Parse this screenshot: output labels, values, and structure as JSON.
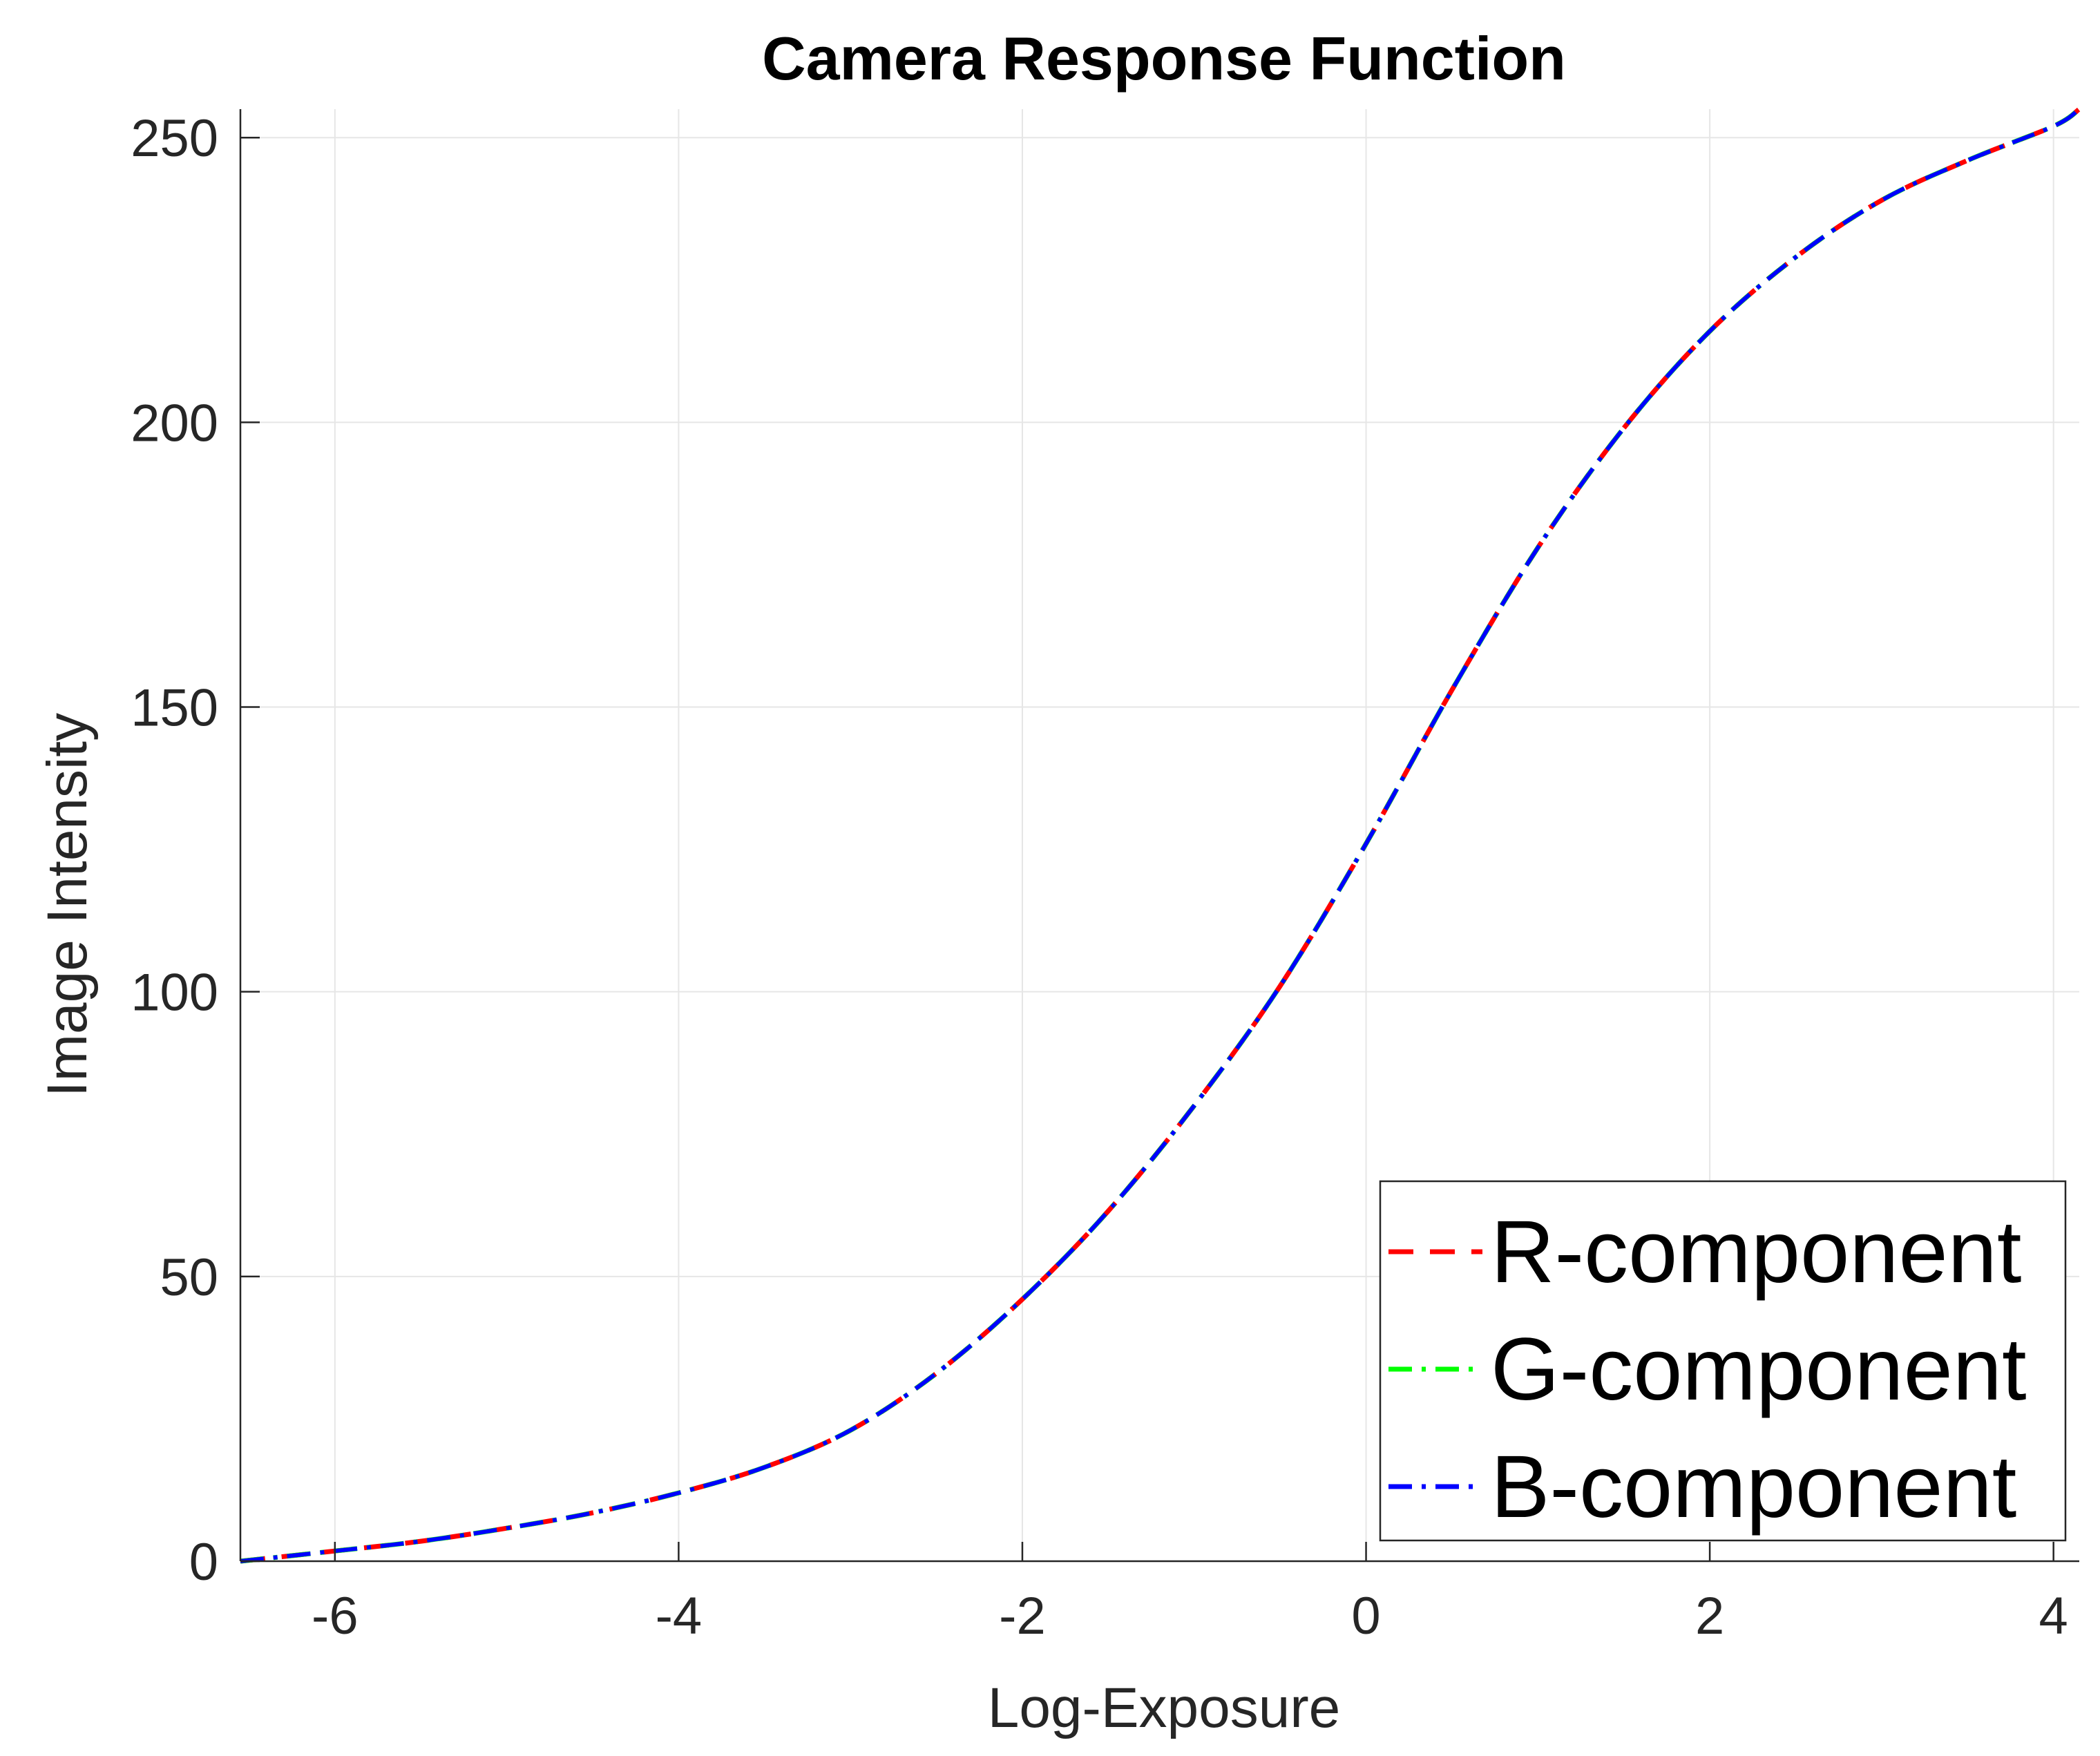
{
  "chart_data": {
    "type": "line",
    "title": "Camera Response Function",
    "xlabel": "Log-Exposure",
    "ylabel": "Image Intensity",
    "xlim": [
      -6.55,
      4.15
    ],
    "ylim": [
      0,
      255
    ],
    "xticks": [
      -6,
      -4,
      -2,
      0,
      2,
      4
    ],
    "yticks": [
      0,
      50,
      100,
      150,
      200,
      250
    ],
    "grid": true,
    "legend_position": "bottom-right",
    "x": [
      -6.55,
      -6.0,
      -5.5,
      -5.0,
      -4.5,
      -4.0,
      -3.5,
      -3.0,
      -2.5,
      -2.0,
      -1.5,
      -1.0,
      -0.5,
      0.0,
      0.5,
      1.0,
      1.5,
      2.0,
      2.5,
      3.0,
      3.5,
      4.0,
      4.15
    ],
    "series": [
      {
        "name": "R-component",
        "color": "#ff0000",
        "dash": "dashed",
        "values": [
          0,
          1.8,
          3.5,
          5.8,
          8.5,
          12,
          16.5,
          23,
          33,
          46,
          61.5,
          80,
          101,
          126,
          153,
          178,
          199,
          216,
          229,
          239,
          246,
          252,
          255
        ]
      },
      {
        "name": "G-component",
        "color": "#00ff00",
        "dash": "dash-dot",
        "values": [
          0,
          1.8,
          3.5,
          5.8,
          8.5,
          12,
          16.5,
          23,
          33,
          46,
          61.5,
          80,
          101,
          126,
          153,
          178,
          199,
          216,
          229,
          239,
          246,
          252,
          255
        ]
      },
      {
        "name": "B-component",
        "color": "#0000ff",
        "dash": "dash-dot",
        "values": [
          0,
          1.8,
          3.5,
          5.8,
          8.5,
          12,
          16.5,
          23,
          33,
          46,
          61.5,
          80,
          101,
          126,
          153,
          178,
          199,
          216,
          229,
          239,
          246,
          252,
          255
        ]
      }
    ]
  }
}
